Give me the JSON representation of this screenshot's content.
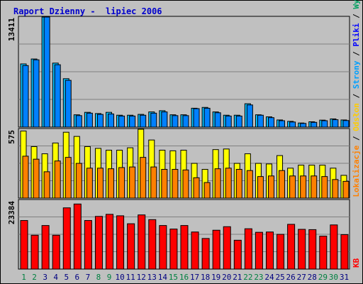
{
  "page": {
    "title": "Raport Dzienny -  lipiec 2006"
  },
  "legend_right": {
    "kb": "KB",
    "lokalizacje": "Lokalizacje",
    "odslon": "Odsłon",
    "strony": "Strony",
    "pliki": "Pliki",
    "wywolania": "Wywołania",
    "separator": " / "
  },
  "colors": {
    "background": "#c0c0c0",
    "grid": "#808080",
    "title": "#0000cc",
    "wywolania": "#00c0ff",
    "pliki": "#0080ff",
    "odslon": "#ffff00",
    "lokalizacje": "#ff8000",
    "kb": "#ff0000",
    "weekday_label": "#000080",
    "weekend_label": "#008040",
    "legend_wywolania": "#00a060",
    "legend_pliki": "#0000ff",
    "legend_strony": "#00a0ff",
    "legend_odslon": "#ffcc00",
    "legend_lokalizacje": "#ff8000",
    "legend_kb": "#ff0000"
  },
  "chart_data": {
    "type": "bar",
    "x_labels": [
      "1",
      "2",
      "3",
      "4",
      "5",
      "6",
      "7",
      "8",
      "9",
      "10",
      "11",
      "12",
      "13",
      "14",
      "15",
      "16",
      "17",
      "18",
      "19",
      "20",
      "21",
      "22",
      "23",
      "24",
      "25",
      "26",
      "27",
      "28",
      "29",
      "30",
      "31"
    ],
    "weekend_days": [
      1,
      2,
      8,
      9,
      15,
      16,
      22,
      23,
      29,
      30
    ],
    "panels": [
      {
        "ymax": 13411,
        "ymax_label": "13411",
        "series": [
          {
            "name": "Wywołania",
            "values": [
              7700,
              8300,
              13411,
              7800,
              5900,
              1500,
              1800,
              1650,
              1800,
              1450,
              1450,
              1550,
              1850,
              2000,
              1500,
              1500,
              2300,
              2400,
              1850,
              1450,
              1450,
              2850,
              1500,
              1250,
              870,
              700,
              500,
              650,
              850,
              1000,
              870
            ]
          },
          {
            "name": "Pliki",
            "values": [
              7500,
              8200,
              13411,
              7600,
              5700,
              1400,
              1700,
              1550,
              1600,
              1350,
              1350,
              1450,
              1700,
              1850,
              1400,
              1400,
              2250,
              2300,
              1750,
              1350,
              1350,
              2700,
              1450,
              1150,
              780,
              620,
              450,
              580,
              780,
              900,
              800
            ]
          }
        ]
      },
      {
        "ymax": 575,
        "ymax_label": "575",
        "series": [
          {
            "name": "Odsłon",
            "values": [
              560,
              430,
              370,
              460,
              550,
              515,
              430,
              415,
              400,
              400,
              420,
              575,
              485,
              400,
              395,
              400,
              290,
              240,
              405,
              410,
              290,
              370,
              290,
              285,
              355,
              250,
              275,
              275,
              275,
              250,
              190
            ]
          },
          {
            "name": "Lokalizacje",
            "values": [
              350,
              325,
              220,
              310,
              340,
              290,
              250,
              250,
              245,
              255,
              260,
              340,
              260,
              240,
              240,
              235,
              170,
              130,
              245,
              250,
              240,
              230,
              180,
              185,
              230,
              185,
              185,
              185,
              180,
              155,
              140
            ]
          }
        ]
      },
      {
        "ymax": 23384,
        "ymax_label": "23384",
        "series": [
          {
            "name": "KB",
            "values": [
              16500,
              11500,
              14800,
              11500,
              20800,
              22100,
              16500,
              17900,
              18600,
              18100,
              15400,
              18400,
              16800,
              14800,
              13600,
              14800,
              12600,
              10400,
              13200,
              14400,
              9800,
              13700,
              12500,
              12600,
              11800,
              15200,
              13500,
              13400,
              11200,
              15000,
              11700
            ]
          }
        ]
      }
    ]
  }
}
